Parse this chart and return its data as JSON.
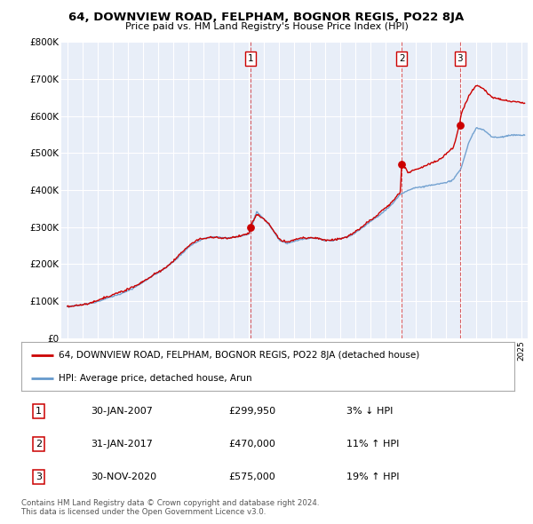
{
  "title": "64, DOWNVIEW ROAD, FELPHAM, BOGNOR REGIS, PO22 8JA",
  "subtitle": "Price paid vs. HM Land Registry's House Price Index (HPI)",
  "property_label": "64, DOWNVIEW ROAD, FELPHAM, BOGNOR REGIS, PO22 8JA (detached house)",
  "hpi_label": "HPI: Average price, detached house, Arun",
  "footnote": "Contains HM Land Registry data © Crown copyright and database right 2024.\nThis data is licensed under the Open Government Licence v3.0.",
  "transactions": [
    {
      "num": "1",
      "date": "30-JAN-2007",
      "price": "£299,950",
      "rel": "3% ↓ HPI",
      "year": 2007.08
    },
    {
      "num": "2",
      "date": "31-JAN-2017",
      "price": "£470,000",
      "rel": "11% ↑ HPI",
      "year": 2017.08
    },
    {
      "num": "3",
      "date": "30-NOV-2020",
      "price": "£575,000",
      "rel": "19% ↑ HPI",
      "year": 2020.92
    }
  ],
  "price_color": "#cc0000",
  "hpi_color": "#6699cc",
  "vline_color": "#cc0000",
  "chart_bg": "#e8eef8",
  "ylim": [
    0,
    800000
  ],
  "xlim_start": 1994.6,
  "xlim_end": 2025.4,
  "background_color": "#ffffff",
  "grid_color": "#ffffff"
}
